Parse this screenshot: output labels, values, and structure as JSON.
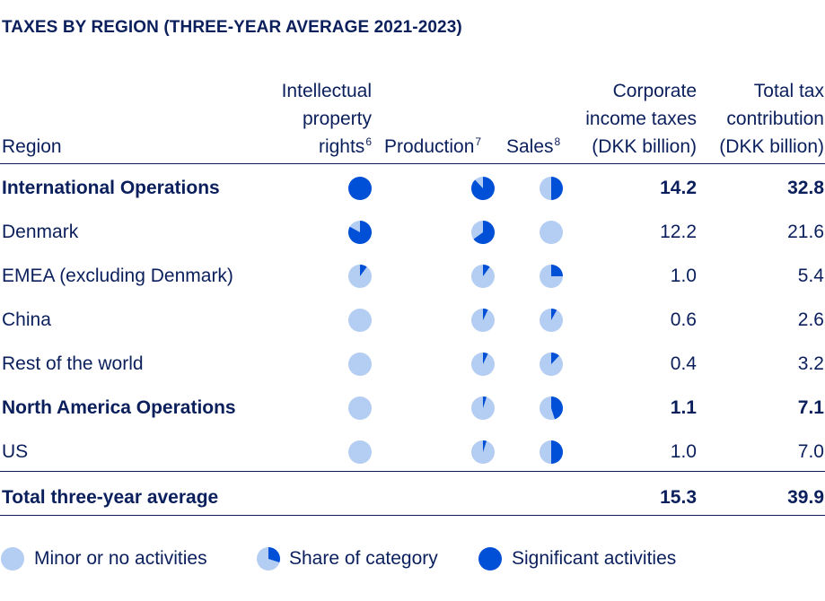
{
  "title": "TAXES BY REGION (THREE-YEAR AVERAGE 2021-2023)",
  "colors": {
    "text": "#0a1f5c",
    "pie_light": "#b4cdf2",
    "pie_dark": "#0050d7"
  },
  "headers": {
    "region": "Region",
    "ip": {
      "line1": "Intellectual",
      "line2": "property",
      "line3": "rights",
      "note": "6"
    },
    "production": {
      "label": "Production",
      "note": "7"
    },
    "sales": {
      "label": "Sales",
      "note": "8"
    },
    "cit": {
      "line1": "Corporate",
      "line2": "income taxes",
      "line3": "(DKK billion)"
    },
    "ttc": {
      "line1": "Total tax",
      "line2": "contribution",
      "line3": "(DKK billion)"
    }
  },
  "rows": [
    {
      "region": "International Operations",
      "bold": true,
      "ip": 1.0,
      "production": 0.88,
      "sales": 0.5,
      "cit": "14.2",
      "ttc": "32.8"
    },
    {
      "region": "Denmark",
      "bold": false,
      "ip": 0.83,
      "production": 0.65,
      "sales": 0.0,
      "cit": "12.2",
      "ttc": "21.6"
    },
    {
      "region": "EMEA (excluding Denmark)",
      "bold": false,
      "ip": 0.1,
      "production": 0.1,
      "sales": 0.25,
      "cit": "1.0",
      "ttc": "5.4"
    },
    {
      "region": "China",
      "bold": false,
      "ip": 0.0,
      "production": 0.07,
      "sales": 0.08,
      "cit": "0.6",
      "ttc": "2.6"
    },
    {
      "region": "Rest of the world",
      "bold": false,
      "ip": 0.0,
      "production": 0.07,
      "sales": 0.12,
      "cit": "0.4",
      "ttc": "3.2"
    },
    {
      "region": "North America Operations",
      "bold": true,
      "ip": 0.0,
      "production": 0.05,
      "sales": 0.45,
      "cit": "1.1",
      "ttc": "7.1"
    },
    {
      "region": "US",
      "bold": false,
      "ip": 0.0,
      "production": 0.05,
      "sales": 0.5,
      "cit": "1.0",
      "ttc": "7.0"
    }
  ],
  "total": {
    "label": "Total three-year average",
    "cit": "15.3",
    "ttc": "39.9"
  },
  "legend": {
    "minor": {
      "label": "Minor or no activities",
      "share": 0.0
    },
    "share": {
      "label": "Share of category",
      "share": 0.3
    },
    "significant": {
      "label": "Significant activities",
      "share": 1.0
    }
  }
}
